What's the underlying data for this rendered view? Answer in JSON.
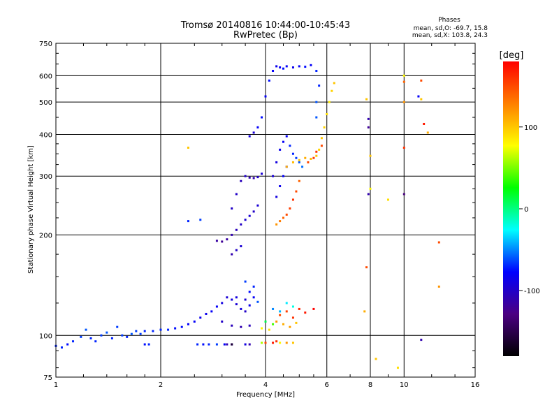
{
  "chart_data": {
    "type": "scatter",
    "title": "Tromsø 20140816 10:44:00-10:45:43",
    "subtitle": "RwPretec (Bp)",
    "xlabel": "Frequency [MHz]",
    "ylabel": "Stationary phase Virtual Height [km]",
    "x_scale": "log",
    "y_scale": "log",
    "xlim": [
      1,
      16
    ],
    "ylim": [
      75,
      750
    ],
    "x_ticks": [
      1,
      2,
      4,
      6,
      8,
      10,
      16
    ],
    "x_tick_labels": [
      "1",
      "2",
      "4",
      "6",
      "8",
      "10",
      "16"
    ],
    "y_ticks": [
      75,
      100,
      200,
      300,
      400,
      500,
      600,
      750
    ],
    "y_tick_labels": [
      "75",
      "100",
      "200",
      "300",
      "400",
      "500",
      "600",
      "750"
    ],
    "grid": true,
    "phase_info": {
      "heading": "Phases",
      "line_o": "mean, sd,O: -69.7, 15.8",
      "line_x": "mean, sd,X: 103.8, 24.3"
    },
    "colorbar": {
      "label": "[deg]",
      "range": [
        -180,
        180
      ],
      "ticks": [
        100,
        0,
        -100
      ],
      "tick_labels": [
        "100",
        "0",
        "-100"
      ],
      "colors": [
        "#000000",
        "#4b0082",
        "#0000ff",
        "#00ffff",
        "#00ff00",
        "#ffff00",
        "#ff7f00",
        "#ff0000"
      ]
    },
    "series": [
      {
        "points": [
          [
            1.0,
            93,
            -70
          ],
          [
            1.04,
            92,
            -70
          ],
          [
            1.08,
            94,
            -75
          ],
          [
            1.12,
            96,
            -70
          ],
          [
            1.18,
            99,
            -65
          ],
          [
            1.22,
            104,
            -60
          ],
          [
            1.26,
            98,
            -70
          ],
          [
            1.3,
            96,
            -70
          ],
          [
            1.35,
            100,
            -65
          ],
          [
            1.4,
            102,
            -60
          ],
          [
            1.45,
            98,
            -70
          ],
          [
            1.5,
            106,
            -65
          ],
          [
            1.55,
            100,
            -65
          ],
          [
            1.6,
            99,
            -70
          ],
          [
            1.65,
            101,
            -60
          ],
          [
            1.7,
            103,
            -65
          ],
          [
            1.75,
            101,
            -65
          ],
          [
            1.8,
            103,
            -70
          ],
          [
            1.9,
            103,
            -70
          ],
          [
            2.0,
            104,
            -70
          ],
          [
            2.1,
            104,
            -70
          ],
          [
            2.2,
            105,
            -75
          ],
          [
            2.3,
            106,
            -75
          ],
          [
            2.4,
            108,
            -80
          ],
          [
            2.5,
            110,
            -80
          ],
          [
            2.6,
            113,
            -85
          ],
          [
            2.7,
            116,
            -85
          ],
          [
            2.8,
            118,
            -80
          ],
          [
            2.9,
            122,
            -80
          ],
          [
            3.0,
            125,
            -90
          ],
          [
            3.1,
            130,
            -95
          ],
          [
            3.2,
            128,
            -90
          ],
          [
            3.3,
            124,
            -95
          ],
          [
            3.4,
            120,
            -90
          ],
          [
            3.5,
            118,
            -100
          ],
          [
            3.6,
            123,
            -85
          ],
          [
            3.7,
            130,
            -80
          ],
          [
            3.8,
            126,
            -60
          ],
          [
            3.0,
            110,
            -100
          ],
          [
            3.2,
            107,
            -105
          ],
          [
            3.4,
            106,
            -110
          ],
          [
            3.6,
            107,
            -105
          ],
          [
            3.05,
            94,
            -80
          ],
          [
            3.1,
            94,
            -110
          ],
          [
            3.2,
            94,
            -100
          ],
          [
            3.5,
            94,
            -90
          ],
          [
            3.6,
            94,
            -110
          ],
          [
            2.55,
            94,
            -70
          ],
          [
            2.65,
            94,
            -75
          ],
          [
            2.75,
            94,
            -70
          ],
          [
            2.9,
            94,
            -65
          ],
          [
            1.8,
            94,
            -75
          ],
          [
            1.85,
            94,
            -70
          ],
          [
            2.9,
            192,
            -115
          ],
          [
            3.0,
            191,
            -120
          ],
          [
            3.1,
            194,
            -115
          ],
          [
            3.2,
            200,
            -110
          ],
          [
            3.3,
            207,
            -105
          ],
          [
            3.4,
            215,
            -100
          ],
          [
            3.5,
            222,
            -95
          ],
          [
            3.6,
            228,
            -95
          ],
          [
            3.7,
            235,
            -100
          ],
          [
            3.8,
            245,
            -95
          ],
          [
            3.2,
            240,
            -100
          ],
          [
            3.3,
            265,
            -100
          ],
          [
            3.4,
            290,
            -105
          ],
          [
            3.5,
            300,
            -100
          ],
          [
            3.6,
            297,
            -110
          ],
          [
            3.7,
            296,
            -110
          ],
          [
            3.8,
            298,
            -100
          ],
          [
            3.9,
            305,
            -95
          ],
          [
            3.6,
            395,
            -90
          ],
          [
            3.7,
            405,
            -95
          ],
          [
            3.8,
            420,
            -80
          ],
          [
            3.9,
            450,
            -75
          ],
          [
            4.0,
            520,
            -80
          ],
          [
            4.1,
            580,
            -75
          ],
          [
            4.2,
            620,
            -80
          ],
          [
            4.3,
            640,
            -85
          ],
          [
            4.4,
            635,
            -80
          ],
          [
            4.5,
            630,
            -75
          ],
          [
            4.6,
            640,
            -80
          ],
          [
            4.8,
            635,
            -85
          ],
          [
            5.0,
            640,
            -80
          ],
          [
            5.2,
            638,
            -75
          ],
          [
            5.4,
            645,
            -80
          ],
          [
            5.6,
            620,
            -70
          ],
          [
            5.7,
            560,
            -70
          ],
          [
            5.6,
            500,
            -60
          ],
          [
            5.6,
            450,
            -60
          ],
          [
            4.2,
            300,
            -95
          ],
          [
            4.3,
            330,
            -90
          ],
          [
            4.4,
            360,
            -85
          ],
          [
            4.5,
            380,
            -80
          ],
          [
            4.6,
            395,
            -80
          ],
          [
            4.7,
            370,
            -70
          ],
          [
            4.8,
            350,
            -70
          ],
          [
            4.9,
            340,
            -65
          ],
          [
            5.0,
            330,
            -60
          ],
          [
            5.1,
            320,
            -55
          ],
          [
            4.3,
            260,
            -90
          ],
          [
            4.4,
            280,
            -85
          ],
          [
            4.5,
            300,
            -80
          ],
          [
            4.6,
            320,
            -75
          ],
          [
            4.2,
            120,
            -50
          ],
          [
            4.4,
            118,
            -40
          ],
          [
            4.6,
            125,
            -30
          ],
          [
            4.8,
            122,
            -20
          ],
          [
            4.0,
            110,
            10
          ],
          [
            4.2,
            108,
            40
          ],
          [
            3.9,
            105,
            80
          ],
          [
            4.1,
            104,
            90
          ],
          [
            2.4,
            220,
            -70
          ],
          [
            2.6,
            222,
            -65
          ],
          [
            3.2,
            175,
            -110
          ],
          [
            3.3,
            180,
            -100
          ],
          [
            3.4,
            185,
            -95
          ],
          [
            3.3,
            130,
            -90
          ],
          [
            3.5,
            128,
            -95
          ],
          [
            3.6,
            135,
            -75
          ],
          [
            3.7,
            140,
            -70
          ],
          [
            3.5,
            145,
            -65
          ]
        ]
      },
      {
        "points": [
          [
            4.3,
            215,
            120
          ],
          [
            4.4,
            220,
            130
          ],
          [
            4.5,
            225,
            140
          ],
          [
            4.6,
            230,
            150
          ],
          [
            4.7,
            240,
            155
          ],
          [
            4.8,
            255,
            160
          ],
          [
            4.9,
            270,
            150
          ],
          [
            5.0,
            290,
            140
          ],
          [
            4.6,
            320,
            110
          ],
          [
            4.8,
            330,
            105
          ],
          [
            5.0,
            335,
            100
          ],
          [
            5.2,
            340,
            110
          ],
          [
            5.4,
            338,
            105
          ],
          [
            5.6,
            345,
            100
          ],
          [
            5.7,
            360,
            95
          ],
          [
            5.8,
            390,
            100
          ],
          [
            5.9,
            420,
            95
          ],
          [
            6.0,
            460,
            90
          ],
          [
            6.1,
            500,
            85
          ],
          [
            6.2,
            540,
            95
          ],
          [
            6.3,
            570,
            100
          ],
          [
            5.3,
            330,
            150
          ],
          [
            5.5,
            340,
            155
          ],
          [
            5.6,
            355,
            160
          ],
          [
            5.8,
            370,
            150
          ],
          [
            4.4,
            115,
            150
          ],
          [
            4.6,
            118,
            155
          ],
          [
            4.8,
            113,
            160
          ],
          [
            5.0,
            120,
            165
          ],
          [
            5.2,
            117,
            170
          ],
          [
            4.3,
            110,
            120
          ],
          [
            4.5,
            108,
            110
          ],
          [
            4.7,
            106,
            115
          ],
          [
            4.9,
            109,
            100
          ],
          [
            4.0,
            95,
            150
          ],
          [
            4.2,
            95,
            170
          ],
          [
            4.4,
            95,
            80
          ],
          [
            4.6,
            95,
            120
          ],
          [
            4.8,
            95,
            100
          ],
          [
            4.3,
            96,
            160
          ],
          [
            3.9,
            95,
            60
          ],
          [
            5.5,
            120,
            180
          ],
          [
            3.2,
            94,
            -160
          ],
          [
            2.4,
            365,
            100
          ],
          [
            7.8,
            510,
            100
          ],
          [
            7.9,
            445,
            -110
          ],
          [
            7.9,
            420,
            -120
          ],
          [
            8.0,
            345,
            100
          ],
          [
            8.0,
            275,
            80
          ],
          [
            7.9,
            265,
            -110
          ],
          [
            7.8,
            160,
            150
          ],
          [
            7.7,
            118,
            110
          ],
          [
            8.3,
            85,
            100
          ],
          [
            9.0,
            255,
            90
          ],
          [
            9.6,
            80,
            90
          ],
          [
            10.0,
            600,
            80
          ],
          [
            10.0,
            575,
            140
          ],
          [
            10.0,
            500,
            120
          ],
          [
            10.0,
            365,
            160
          ],
          [
            10.0,
            265,
            -130
          ],
          [
            11.0,
            520,
            -80
          ],
          [
            11.2,
            510,
            100
          ],
          [
            11.2,
            580,
            150
          ],
          [
            11.4,
            430,
            170
          ],
          [
            11.7,
            405,
            110
          ],
          [
            12.6,
            190,
            150
          ],
          [
            12.6,
            140,
            120
          ],
          [
            11.2,
            97,
            -110
          ]
        ]
      }
    ]
  }
}
